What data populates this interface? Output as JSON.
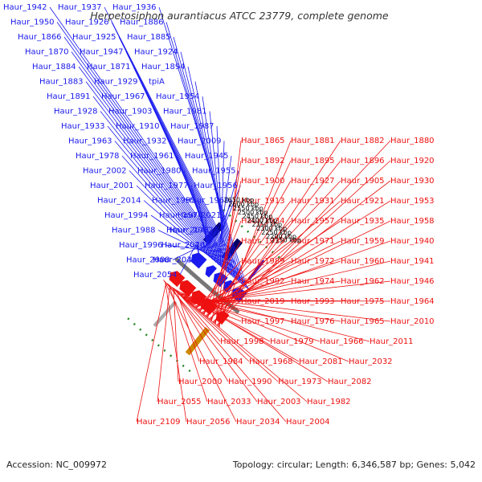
{
  "title": "Herpetosiphon aurantiacus ATCC 23779, complete genome",
  "footer": {
    "accession": "Accession: NC_009972",
    "summary": "Topology: circular; Length: 6,346,587 bp; Genes: 5,042"
  },
  "colors": {
    "forward": "#1a1aee",
    "reverse": "#ee1111",
    "backbone": "#777777",
    "scale_dots": "#228822",
    "title": "#333333"
  },
  "scale_ticks": [
    "2150 kbp",
    "2200 kbp",
    "2250 kbp",
    "2300 kbp",
    "2350 kbp",
    "2400 kbp",
    "2450 kbp",
    "2500 kbp",
    "2550 kbp",
    "2600 kbp",
    "2650 kbp"
  ],
  "labels_blue": [
    "Haur_1942",
    "Haur_1937",
    "Haur_1936",
    "Haur_1950",
    "Haur_1926",
    "Haur_1886",
    "Haur_1866",
    "Haur_1925",
    "Haur_1885",
    "Haur_1870",
    "Haur_1947",
    "Haur_1924",
    "Haur_1884",
    "Haur_1871",
    "Haur_1894",
    "Haur_1883",
    "Haur_1929",
    "tpiA",
    "Haur_1891",
    "Haur_1967",
    "Haur_1954",
    "Haur_1928",
    "Haur_1903",
    "Haur_1981",
    "Haur_1933",
    "Haur_1910",
    "Haur_1987",
    "Haur_1963",
    "Haur_1932",
    "Haur_2009",
    "Haur_1978",
    "Haur_1961",
    "Haur_1945",
    "Haur_2002",
    "Haur_1980",
    "Haur_1955",
    "Haur_2001",
    "Haur_1977",
    "Haur_1956",
    "Haur_2014",
    "Haur_1995",
    "Haur_1969",
    "Haur_1994",
    "Haur_1970",
    "Haur_2021",
    "Haur_1988",
    "Haur_2041",
    "Haur_2012",
    "Haur_1996",
    "Haur_2020",
    "Haur_2046",
    "Haur_2008",
    "Haur_2030",
    "Haur_2040",
    "Haur_2054"
  ],
  "labels_red": [
    "Haur_1865",
    "Haur_1881",
    "Haur_1882",
    "Haur_1880",
    "Haur_1892",
    "Haur_1895",
    "Haur_1896",
    "Haur_1920",
    "Haur_1900",
    "Haur_1927",
    "Haur_1905",
    "Haur_1930",
    "Haur_1913",
    "Haur_1931",
    "Haur_1921",
    "Haur_1953",
    "Haur_1934",
    "Haur_1957",
    "Haur_1935",
    "Haur_1958",
    "Haur_1939",
    "Haur_1971",
    "Haur_1959",
    "Haur_1940",
    "Haur_1989",
    "Haur_1972",
    "Haur_1960",
    "Haur_1941",
    "Haur_1992",
    "Haur_1974",
    "Haur_1962",
    "Haur_1946",
    "Haur_2019",
    "Haur_1993",
    "Haur_1975",
    "Haur_1964",
    "Haur_1997",
    "Haur_1976",
    "Haur_1965",
    "Haur_2010",
    "Haur_1998",
    "Haur_1979",
    "Haur_1966",
    "Haur_2011",
    "Haur_1984",
    "Haur_1968",
    "Haur_2081",
    "Haur_2032",
    "Haur_2000",
    "Haur_1990",
    "Haur_1973",
    "Haur_2082",
    "Haur_2055",
    "Haur_2033",
    "Haur_2003",
    "Haur_1982",
    "Haur_2109",
    "Haur_2056",
    "Haur_2034",
    "Haur_2004"
  ]
}
